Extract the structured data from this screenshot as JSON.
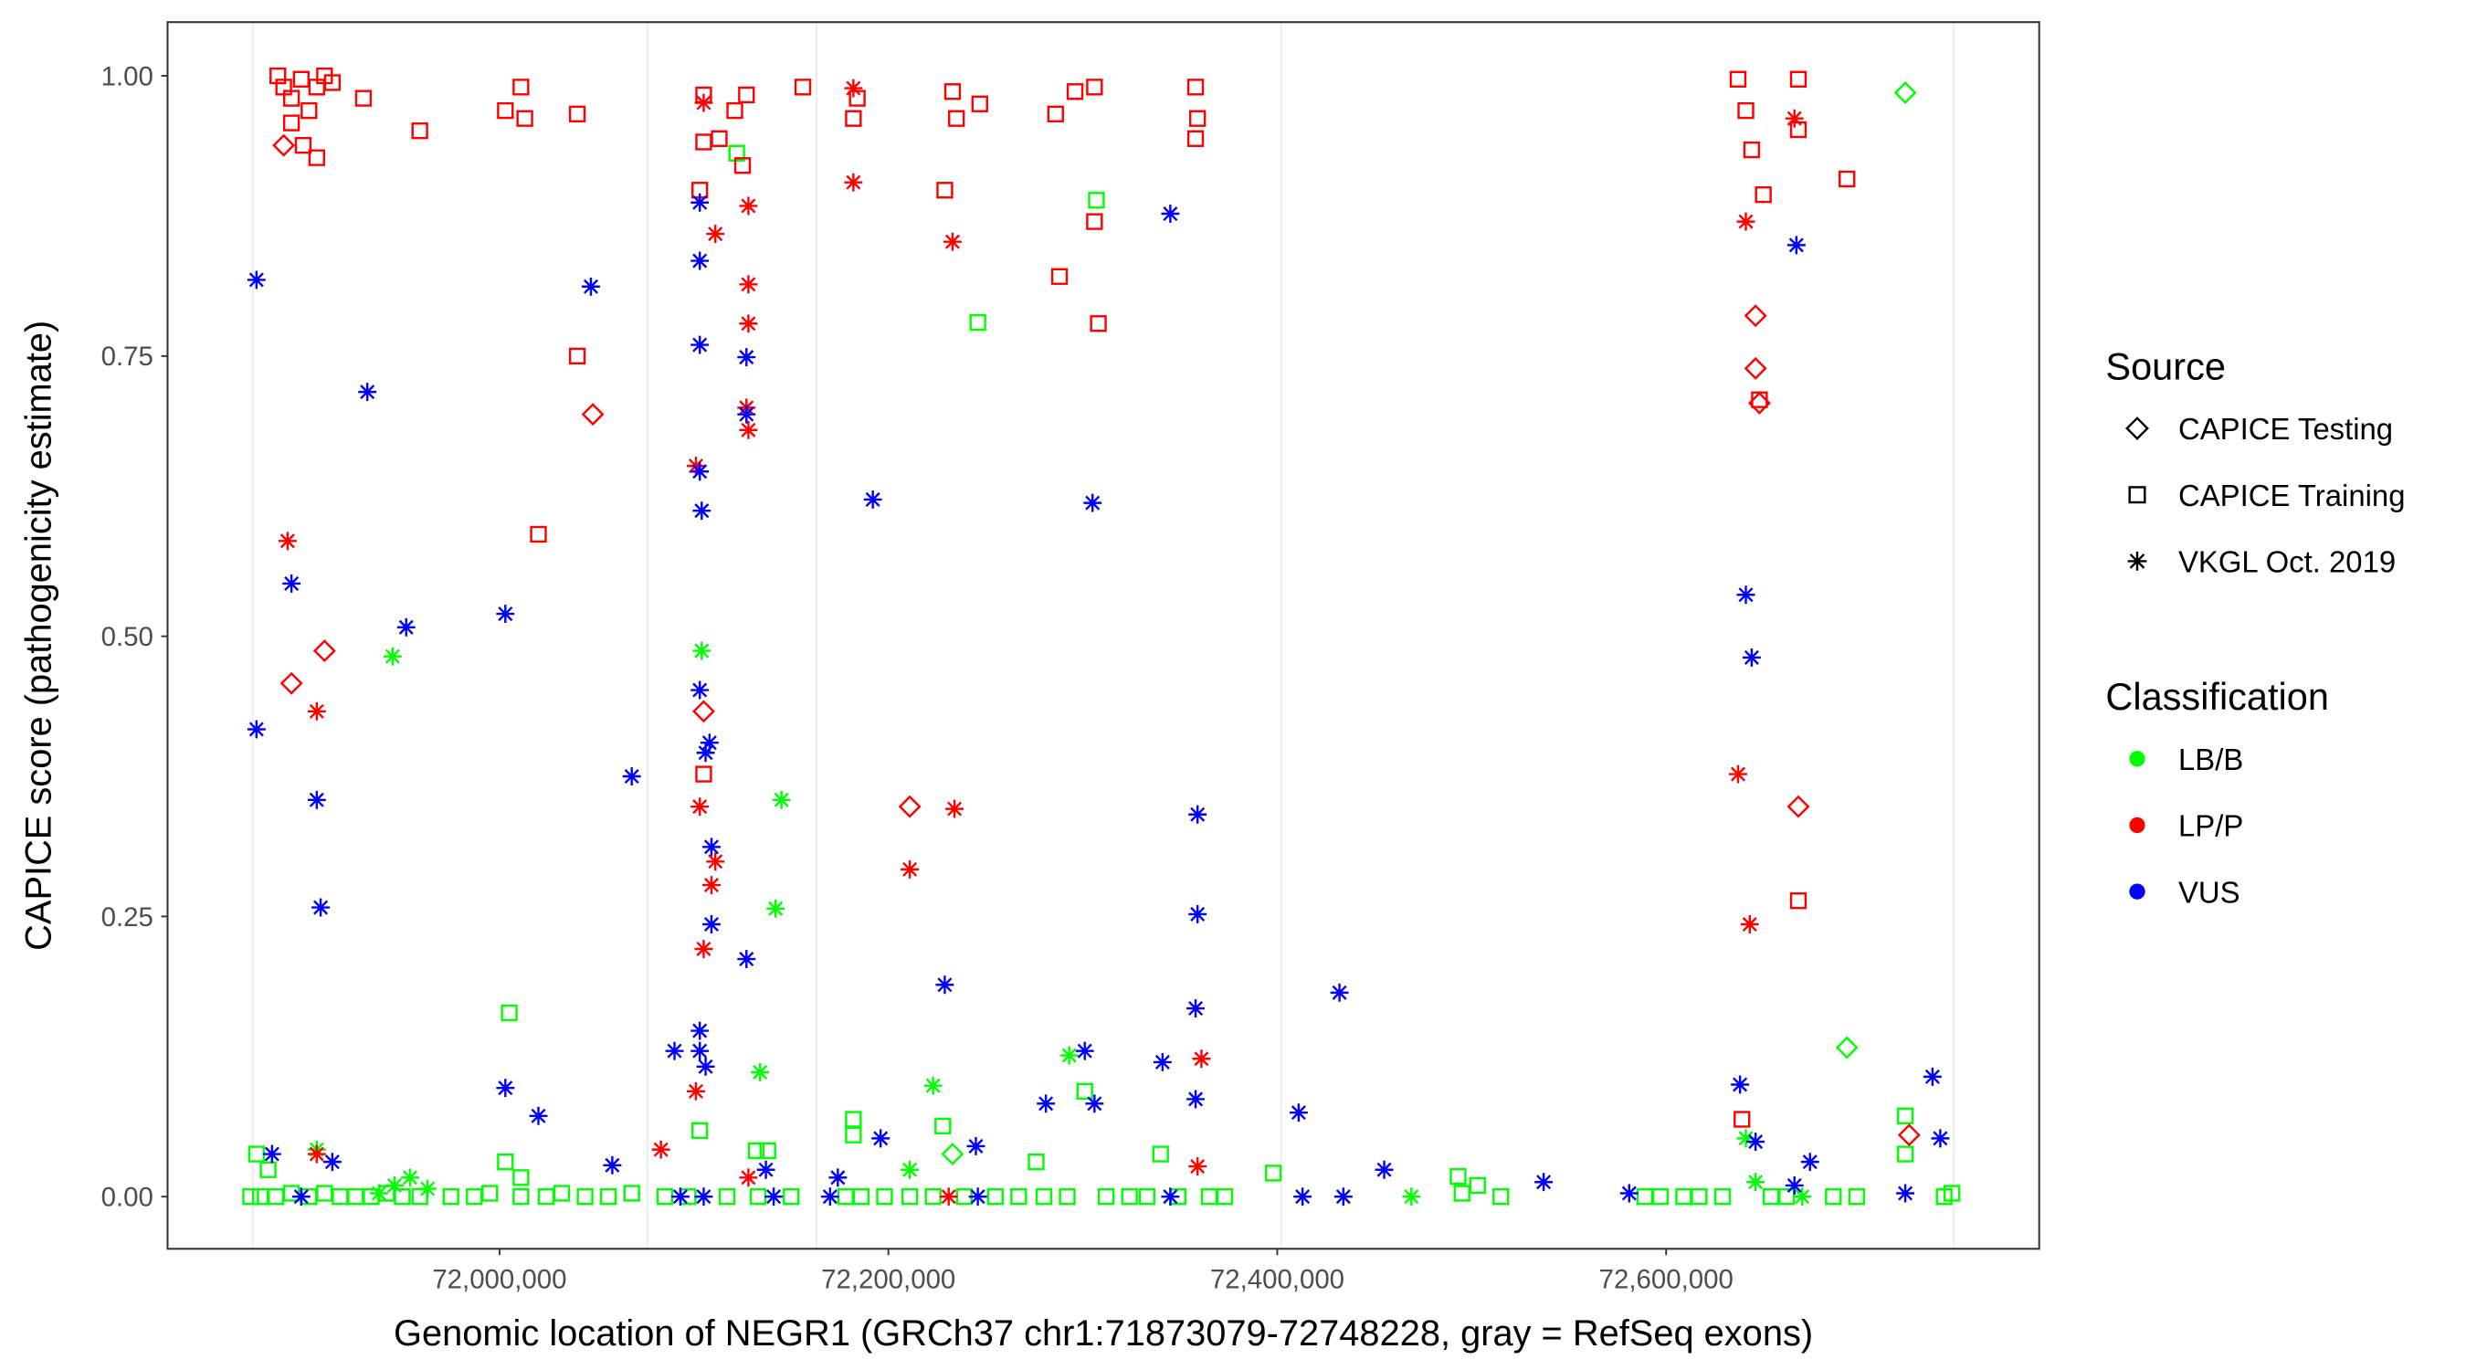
{
  "chart_data": {
    "type": "scatter",
    "xlabel": "Genomic location of NEGR1 (GRCh37 chr1:71873079-72748228, gray = RefSeq exons)",
    "ylabel": "CAPICE score (pathogenicity estimate)",
    "xlim": [
      71860000,
      72760000
    ],
    "ylim": [
      -0.045,
      1.045
    ],
    "x_ticks": [
      72000000,
      72200000,
      72400000,
      72600000
    ],
    "x_tick_labels": [
      "72,000,000",
      "72,200,000",
      "72,400,000",
      "72,600,000"
    ],
    "y_ticks": [
      0,
      0.25,
      0.5,
      0.75,
      1.0
    ],
    "y_tick_labels": [
      "0.00",
      "0.25",
      "0.50",
      "0.75",
      "1.00"
    ],
    "grid": false,
    "exon_positions": [
      71873000,
      72076000,
      72163000,
      72402000,
      72748000
    ],
    "exon_color": "#ebebeb",
    "legend": {
      "placement": "right",
      "source_title": "Source",
      "source_items": [
        {
          "label": "CAPICE Testing",
          "shape": "diamond"
        },
        {
          "label": "CAPICE Training",
          "shape": "square"
        },
        {
          "label": "VKGL Oct. 2019",
          "shape": "asterisk"
        }
      ],
      "class_title": "Classification",
      "class_items": [
        {
          "label": "LB/B",
          "color": "#00ff00"
        },
        {
          "label": "LP/P",
          "color": "#ff0000"
        },
        {
          "label": "VUS",
          "color": "#0000ff"
        }
      ]
    },
    "series": [
      {
        "source": "CAPICE Training",
        "class": "LB/B",
        "shape": "square",
        "color": "#00ff00",
        "points": [
          [
            71872000,
            0
          ],
          [
            71877000,
            0
          ],
          [
            71885000,
            0
          ],
          [
            71893000,
            0.003
          ],
          [
            71902000,
            0
          ],
          [
            71910000,
            0.003
          ],
          [
            71918000,
            0
          ],
          [
            71926000,
            0
          ],
          [
            71934000,
            0
          ],
          [
            71942000,
            0.003
          ],
          [
            71950000,
            0
          ],
          [
            71959000,
            0
          ],
          [
            71975000,
            0
          ],
          [
            71987000,
            0
          ],
          [
            71995000,
            0.003
          ],
          [
            72011000,
            0
          ],
          [
            72024000,
            0
          ],
          [
            72032000,
            0.003
          ],
          [
            72044000,
            0
          ],
          [
            72056000,
            0
          ],
          [
            72068000,
            0.003
          ],
          [
            72085000,
            0
          ],
          [
            72097000,
            0
          ],
          [
            72117000,
            0
          ],
          [
            72133000,
            0
          ],
          [
            72150000,
            0
          ],
          [
            72178000,
            0
          ],
          [
            72186000,
            0
          ],
          [
            72198000,
            0
          ],
          [
            72211000,
            0
          ],
          [
            72223000,
            0
          ],
          [
            72239000,
            0
          ],
          [
            72255000,
            0
          ],
          [
            72267000,
            0
          ],
          [
            72280000,
            0
          ],
          [
            72292000,
            0
          ],
          [
            72312000,
            0
          ],
          [
            72324000,
            0
          ],
          [
            72333000,
            0
          ],
          [
            72349000,
            0
          ],
          [
            72365000,
            0
          ],
          [
            72373000,
            0
          ],
          [
            72495000,
            0.003
          ],
          [
            72503000,
            0.01
          ],
          [
            72515000,
            0
          ],
          [
            72589000,
            0
          ],
          [
            72597000,
            0
          ],
          [
            72609000,
            0
          ],
          [
            72617000,
            0
          ],
          [
            72629000,
            0
          ],
          [
            72654000,
            0
          ],
          [
            72662000,
            0
          ],
          [
            72686000,
            0
          ],
          [
            72698000,
            0
          ],
          [
            72743000,
            0
          ],
          [
            72747000,
            0.003
          ],
          [
            72122000,
            0.931
          ],
          [
            72307000,
            0.889
          ],
          [
            72246000,
            0.78
          ],
          [
            72005000,
            0.164
          ],
          [
            72103000,
            0.059
          ],
          [
            72301000,
            0.094
          ],
          [
            72182000,
            0.069
          ],
          [
            72228000,
            0.063
          ],
          [
            72723000,
            0.072
          ],
          [
            72723000,
            0.038
          ],
          [
            71875000,
            0.038
          ],
          [
            71881000,
            0.024
          ],
          [
            72003000,
            0.031
          ],
          [
            72011000,
            0.017
          ],
          [
            72132000,
            0.041
          ],
          [
            72138000,
            0.041
          ],
          [
            72276000,
            0.031
          ],
          [
            72340000,
            0.038
          ],
          [
            72398000,
            0.021
          ],
          [
            72493000,
            0.018
          ],
          [
            72182000,
            0.055
          ]
        ]
      },
      {
        "source": "VKGL Oct. 2019",
        "class": "LB/B",
        "shape": "asterisk",
        "color": "#00ff00",
        "points": [
          [
            71945000,
            0.482
          ],
          [
            72104000,
            0.487
          ],
          [
            72145000,
            0.354
          ],
          [
            72142000,
            0.257
          ],
          [
            72134000,
            0.111
          ],
          [
            72293000,
            0.126
          ],
          [
            72223000,
            0.099
          ],
          [
            72469000,
            0
          ],
          [
            72641000,
            0.052
          ],
          [
            72646000,
            0.013
          ],
          [
            71906000,
            0.042
          ],
          [
            72211000,
            0.024
          ],
          [
            71946000,
            0.01
          ],
          [
            71954000,
            0.017
          ],
          [
            71938000,
            0.003
          ],
          [
            71963000,
            0.007
          ],
          [
            72670000,
            0
          ]
        ]
      },
      {
        "source": "CAPICE Testing",
        "class": "LB/B",
        "shape": "diamond",
        "color": "#00ff00",
        "points": [
          [
            72723000,
            0.985
          ],
          [
            72693000,
            0.133
          ],
          [
            72233000,
            0.038
          ]
        ]
      },
      {
        "source": "CAPICE Training",
        "class": "LP/P",
        "shape": "square",
        "color": "#ff0000",
        "points": [
          [
            71886000,
            1.0
          ],
          [
            71889000,
            0.99
          ],
          [
            71893000,
            0.98
          ],
          [
            71898000,
            0.997
          ],
          [
            71902000,
            0.969
          ],
          [
            71906000,
            0.99
          ],
          [
            71910000,
            1.0
          ],
          [
            71893000,
            0.958
          ],
          [
            71899000,
            0.938
          ],
          [
            71906000,
            0.927
          ],
          [
            71914000,
            0.994
          ],
          [
            71930000,
            0.98
          ],
          [
            71959000,
            0.951
          ],
          [
            72003000,
            0.969
          ],
          [
            72011000,
            0.99
          ],
          [
            72013000,
            0.962
          ],
          [
            72040000,
            0.966
          ],
          [
            72105000,
            0.983
          ],
          [
            72103000,
            0.898
          ],
          [
            72105000,
            0.941
          ],
          [
            72113000,
            0.944
          ],
          [
            72121000,
            0.969
          ],
          [
            72125000,
            0.92
          ],
          [
            72127000,
            0.983
          ],
          [
            72156000,
            0.99
          ],
          [
            72182000,
            0.962
          ],
          [
            72184000,
            0.98
          ],
          [
            72229000,
            0.898
          ],
          [
            72233000,
            0.986
          ],
          [
            72235000,
            0.962
          ],
          [
            72247000,
            0.975
          ],
          [
            72286000,
            0.966
          ],
          [
            72296000,
            0.986
          ],
          [
            72306000,
            0.99
          ],
          [
            72306000,
            0.87
          ],
          [
            72308000,
            0.779
          ],
          [
            72288000,
            0.821
          ],
          [
            72358000,
            0.99
          ],
          [
            72359000,
            0.962
          ],
          [
            72358000,
            0.944
          ],
          [
            72637000,
            0.997
          ],
          [
            72641000,
            0.969
          ],
          [
            72644000,
            0.934
          ],
          [
            72650000,
            0.894
          ],
          [
            72668000,
            0.997
          ],
          [
            72668000,
            0.952
          ],
          [
            72693000,
            0.908
          ],
          [
            72668000,
            0.264
          ],
          [
            72639000,
            0.069
          ],
          [
            72648000,
            0.711
          ],
          [
            72040000,
            0.75
          ],
          [
            72020000,
            0.591
          ],
          [
            72105000,
            0.377
          ]
        ]
      },
      {
        "source": "CAPICE Testing",
        "class": "LP/P",
        "shape": "diamond",
        "color": "#ff0000",
        "points": [
          [
            71889000,
            0.938
          ],
          [
            71893000,
            0.458
          ],
          [
            71910000,
            0.487
          ],
          [
            72048000,
            0.698
          ],
          [
            72105000,
            0.433
          ],
          [
            72211000,
            0.348
          ],
          [
            72646000,
            0.786
          ],
          [
            72646000,
            0.739
          ],
          [
            72648000,
            0.708
          ],
          [
            72668000,
            0.348
          ],
          [
            72725000,
            0.055
          ]
        ]
      },
      {
        "source": "VKGL Oct. 2019",
        "class": "LP/P",
        "shape": "asterisk",
        "color": "#ff0000",
        "points": [
          [
            71891000,
            0.585
          ],
          [
            71906000,
            0.433
          ],
          [
            71906000,
            0.038
          ],
          [
            72105000,
            0.976
          ],
          [
            72101000,
            0.652
          ],
          [
            72103000,
            0.348
          ],
          [
            72105000,
            0.221
          ],
          [
            72111000,
            0.859
          ],
          [
            72128000,
            0.884
          ],
          [
            72128000,
            0.814
          ],
          [
            72128000,
            0.779
          ],
          [
            72127000,
            0.704
          ],
          [
            72128000,
            0.684
          ],
          [
            72101000,
            0.094
          ],
          [
            72109000,
            0.278
          ],
          [
            72111000,
            0.299
          ],
          [
            72128000,
            0.017
          ],
          [
            72083000,
            0.042
          ],
          [
            72182000,
            0.989
          ],
          [
            72182000,
            0.905
          ],
          [
            72211000,
            0.292
          ],
          [
            72233000,
            0.852
          ],
          [
            72234000,
            0.346
          ],
          [
            72361000,
            0.123
          ],
          [
            72359000,
            0.027
          ],
          [
            72641000,
            0.87
          ],
          [
            72637000,
            0.377
          ],
          [
            72643000,
            0.243
          ],
          [
            72666000,
            0.962
          ],
          [
            72231000,
            0
          ]
        ]
      },
      {
        "source": "VKGL Oct. 2019",
        "class": "VUS",
        "shape": "asterisk",
        "color": "#0000ff",
        "points": [
          [
            71875000,
            0.818
          ],
          [
            71932000,
            0.718
          ],
          [
            71893000,
            0.547
          ],
          [
            71875000,
            0.417
          ],
          [
            71952000,
            0.508
          ],
          [
            71906000,
            0.354
          ],
          [
            71908000,
            0.258
          ],
          [
            72003000,
            0.52
          ],
          [
            72047000,
            0.812
          ],
          [
            72068000,
            0.375
          ],
          [
            72103000,
            0.887
          ],
          [
            72103000,
            0.835
          ],
          [
            72103000,
            0.76
          ],
          [
            72103000,
            0.647
          ],
          [
            72104000,
            0.612
          ],
          [
            72103000,
            0.452
          ],
          [
            72106000,
            0.396
          ],
          [
            72108000,
            0.405
          ],
          [
            72109000,
            0.312
          ],
          [
            72109000,
            0.243
          ],
          [
            72127000,
            0.749
          ],
          [
            72127000,
            0.698
          ],
          [
            72127000,
            0.212
          ],
          [
            72103000,
            0.148
          ],
          [
            72103000,
            0.13
          ],
          [
            72106000,
            0.116
          ],
          [
            72090000,
            0.13
          ],
          [
            72192000,
            0.622
          ],
          [
            72229000,
            0.189
          ],
          [
            72305000,
            0.619
          ],
          [
            72345000,
            0.877
          ],
          [
            72359000,
            0.341
          ],
          [
            72359000,
            0.252
          ],
          [
            72358000,
            0.168
          ],
          [
            72358000,
            0.087
          ],
          [
            72411000,
            0.075
          ],
          [
            72432000,
            0.182
          ],
          [
            72641000,
            0.537
          ],
          [
            72644000,
            0.481
          ],
          [
            72667000,
            0.849
          ],
          [
            72638000,
            0.1
          ],
          [
            72737000,
            0.107
          ],
          [
            72741000,
            0.052
          ],
          [
            72003000,
            0.097
          ],
          [
            72020000,
            0.072
          ],
          [
            72301000,
            0.13
          ],
          [
            72281000,
            0.083
          ],
          [
            72306000,
            0.083
          ],
          [
            72341000,
            0.12
          ],
          [
            72455000,
            0.024
          ],
          [
            72537000,
            0.013
          ],
          [
            72646000,
            0.049
          ],
          [
            72674000,
            0.031
          ],
          [
            71883000,
            0.038
          ],
          [
            71914000,
            0.031
          ],
          [
            72058000,
            0.028
          ],
          [
            72137000,
            0.024
          ],
          [
            72174000,
            0.017
          ],
          [
            72245000,
            0.045
          ],
          [
            72196000,
            0.052
          ],
          [
            72723000,
            0.003
          ],
          [
            71898000,
            0
          ],
          [
            72105000,
            0
          ],
          [
            72093000,
            0
          ],
          [
            72141000,
            0
          ],
          [
            72170000,
            0
          ],
          [
            72246000,
            0
          ],
          [
            72345000,
            0
          ],
          [
            72413000,
            0
          ],
          [
            72434000,
            0
          ],
          [
            72581000,
            0.003
          ],
          [
            72666000,
            0.01
          ]
        ]
      }
    ]
  }
}
